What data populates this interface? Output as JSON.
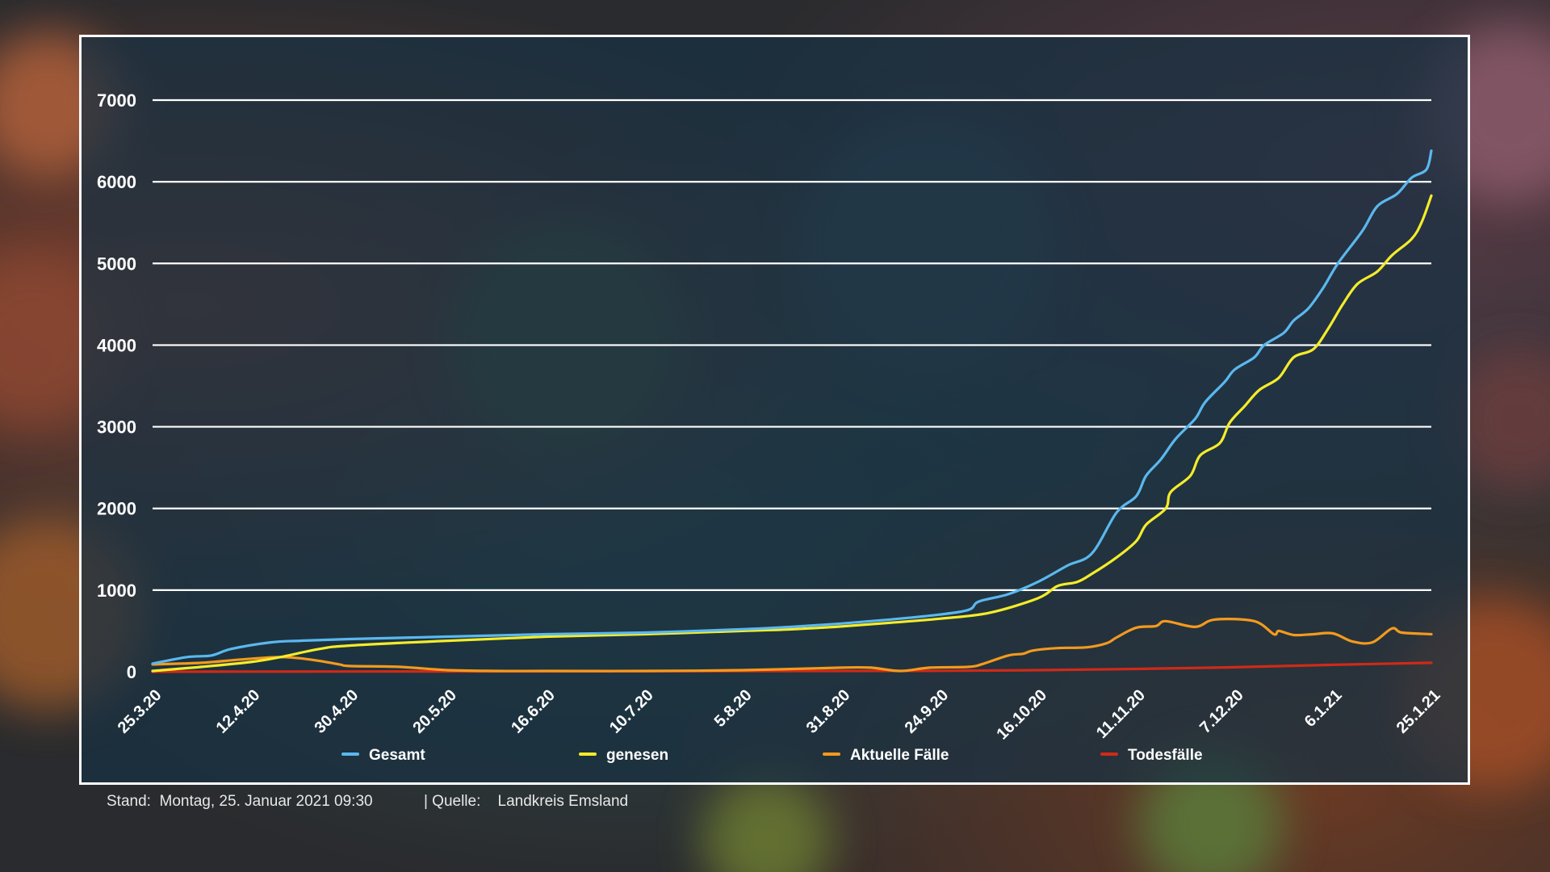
{
  "chart_data": {
    "type": "line",
    "title": "",
    "xlabel": "",
    "ylabel": "",
    "ylim": [
      0,
      7000
    ],
    "yticks": [
      0,
      1000,
      2000,
      3000,
      4000,
      5000,
      6000,
      7000
    ],
    "grid": true,
    "legend_position": "bottom",
    "x_ticks": [
      "25.3.20",
      "12.4.20",
      "30.4.20",
      "20.5.20",
      "16.6.20",
      "10.7.20",
      "5.8.20",
      "31.8.20",
      "24.9.20",
      "16.10.20",
      "11.11.20",
      "7.12.20",
      "6.1.21",
      "25.1.21"
    ],
    "series": [
      {
        "name": "Gesamt",
        "color": "#5ab8ee",
        "points": [
          [
            0,
            100
          ],
          [
            0.35,
            180
          ],
          [
            0.6,
            200
          ],
          [
            0.8,
            280
          ],
          [
            1.2,
            360
          ],
          [
            1.5,
            380
          ],
          [
            2,
            400
          ],
          [
            3,
            430
          ],
          [
            4,
            460
          ],
          [
            5,
            480
          ],
          [
            6,
            520
          ],
          [
            6.5,
            550
          ],
          [
            7,
            590
          ],
          [
            7.5,
            640
          ],
          [
            8,
            700
          ],
          [
            8.3,
            760
          ],
          [
            8.4,
            860
          ],
          [
            8.7,
            950
          ],
          [
            9,
            1100
          ],
          [
            9.3,
            1300
          ],
          [
            9.55,
            1450
          ],
          [
            9.8,
            1950
          ],
          [
            10.0,
            2150
          ],
          [
            10.1,
            2400
          ],
          [
            10.25,
            2600
          ],
          [
            10.4,
            2850
          ],
          [
            10.6,
            3100
          ],
          [
            10.7,
            3300
          ],
          [
            10.9,
            3550
          ],
          [
            11.0,
            3700
          ],
          [
            11.2,
            3850
          ],
          [
            11.3,
            4000
          ],
          [
            11.5,
            4150
          ],
          [
            11.6,
            4300
          ],
          [
            11.75,
            4450
          ],
          [
            11.9,
            4700
          ],
          [
            12.05,
            5000
          ],
          [
            12.3,
            5400
          ],
          [
            12.45,
            5700
          ],
          [
            12.65,
            5850
          ],
          [
            12.8,
            6050
          ],
          [
            12.95,
            6150
          ],
          [
            13,
            6380
          ]
        ]
      },
      {
        "name": "genesen",
        "color": "#f4ec2a",
        "points": [
          [
            0,
            10
          ],
          [
            0.5,
            60
          ],
          [
            1,
            120
          ],
          [
            1.3,
            180
          ],
          [
            1.7,
            280
          ],
          [
            2,
            320
          ],
          [
            3,
            380
          ],
          [
            4,
            430
          ],
          [
            5,
            460
          ],
          [
            6,
            500
          ],
          [
            6.5,
            520
          ],
          [
            7,
            555
          ],
          [
            7.5,
            600
          ],
          [
            8,
            650
          ],
          [
            8.5,
            720
          ],
          [
            9,
            900
          ],
          [
            9.2,
            1050
          ],
          [
            9.4,
            1100
          ],
          [
            9.55,
            1200
          ],
          [
            9.8,
            1400
          ],
          [
            10.0,
            1600
          ],
          [
            10.1,
            1800
          ],
          [
            10.3,
            2000
          ],
          [
            10.35,
            2200
          ],
          [
            10.55,
            2400
          ],
          [
            10.65,
            2650
          ],
          [
            10.85,
            2800
          ],
          [
            10.95,
            3050
          ],
          [
            11.1,
            3250
          ],
          [
            11.25,
            3450
          ],
          [
            11.45,
            3600
          ],
          [
            11.6,
            3850
          ],
          [
            11.8,
            3950
          ],
          [
            11.95,
            4200
          ],
          [
            12.1,
            4500
          ],
          [
            12.25,
            4750
          ],
          [
            12.45,
            4900
          ],
          [
            12.6,
            5100
          ],
          [
            12.8,
            5300
          ],
          [
            12.9,
            5500
          ],
          [
            13,
            5830
          ]
        ]
      },
      {
        "name": "Aktuelle Fälle",
        "color": "#f39a1e",
        "points": [
          [
            0,
            90
          ],
          [
            0.5,
            110
          ],
          [
            0.9,
            150
          ],
          [
            1.3,
            180
          ],
          [
            1.6,
            150
          ],
          [
            1.9,
            90
          ],
          [
            2,
            70
          ],
          [
            2.5,
            60
          ],
          [
            3,
            20
          ],
          [
            3.5,
            10
          ],
          [
            4,
            10
          ],
          [
            5,
            10
          ],
          [
            6,
            20
          ],
          [
            7,
            50
          ],
          [
            7.3,
            50
          ],
          [
            7.6,
            10
          ],
          [
            7.9,
            50
          ],
          [
            8.3,
            60
          ],
          [
            8.45,
            100
          ],
          [
            8.7,
            200
          ],
          [
            8.85,
            220
          ],
          [
            8.95,
            260
          ],
          [
            9.2,
            290
          ],
          [
            9.5,
            300
          ],
          [
            9.7,
            350
          ],
          [
            9.8,
            420
          ],
          [
            10.0,
            540
          ],
          [
            10.2,
            560
          ],
          [
            10.3,
            620
          ],
          [
            10.6,
            550
          ],
          [
            10.8,
            640
          ],
          [
            11.2,
            620
          ],
          [
            11.4,
            460
          ],
          [
            11.45,
            500
          ],
          [
            11.6,
            450
          ],
          [
            11.8,
            460
          ],
          [
            12.0,
            470
          ],
          [
            12.2,
            370
          ],
          [
            12.4,
            360
          ],
          [
            12.6,
            530
          ],
          [
            12.7,
            480
          ],
          [
            13,
            460
          ]
        ]
      },
      {
        "name": "Todesfälle",
        "color": "#cf2a18",
        "points": [
          [
            0,
            0
          ],
          [
            1,
            2
          ],
          [
            2,
            3
          ],
          [
            3,
            4
          ],
          [
            4,
            5
          ],
          [
            5,
            6
          ],
          [
            6,
            8
          ],
          [
            7,
            10
          ],
          [
            8,
            12
          ],
          [
            9,
            20
          ],
          [
            10,
            35
          ],
          [
            11,
            55
          ],
          [
            12,
            85
          ],
          [
            13,
            110
          ]
        ]
      }
    ]
  },
  "footer": {
    "stand_label": "Stand:",
    "stand_value": "Montag, 25. Januar 2021 09:30",
    "quelle_label": "| Quelle:",
    "quelle_value": "Landkreis Emsland"
  }
}
